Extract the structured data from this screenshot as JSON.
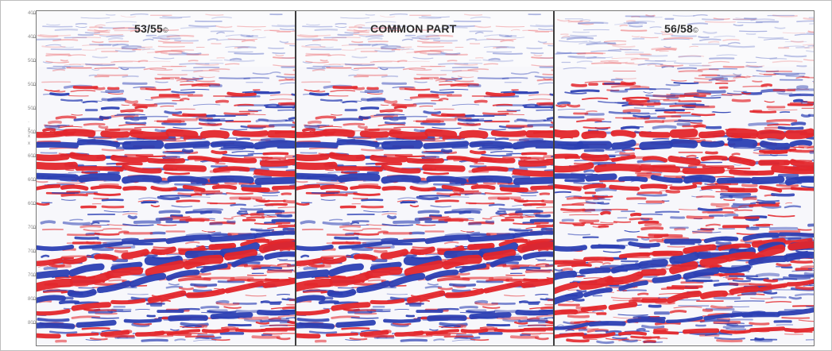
{
  "figure": {
    "panels": [
      {
        "title": "53/55",
        "title_mark": "©"
      },
      {
        "title": "COMMON PART",
        "title_mark": ""
      },
      {
        "title": "56/58",
        "title_mark": "©"
      }
    ],
    "colors": {
      "positive": "#e3262b",
      "negative": "#2b3fb3",
      "background": "#f7f7fb"
    },
    "time_axis_labels": [
      "400",
      "400",
      "500",
      "500",
      "500",
      "500",
      "600",
      "600",
      "600",
      "700",
      "700",
      "700",
      "800",
      "800"
    ]
  }
}
